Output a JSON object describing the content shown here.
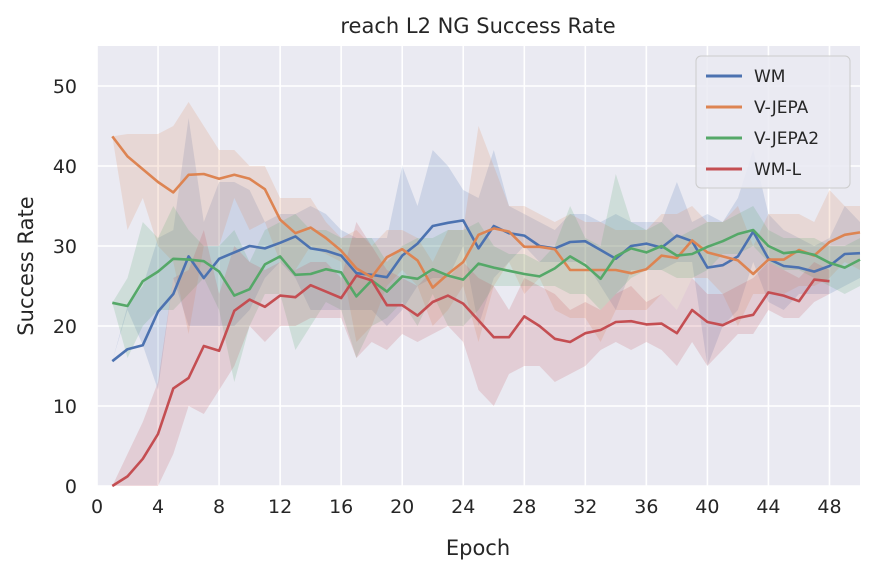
{
  "chart_data": {
    "type": "line",
    "title": "reach L2 NG Success Rate",
    "xlabel": "Epoch",
    "ylabel": "Success Rate",
    "xlim": [
      0,
      50
    ],
    "ylim": [
      0,
      55
    ],
    "xticks": [
      0,
      4,
      8,
      12,
      16,
      20,
      24,
      28,
      32,
      36,
      40,
      44,
      48
    ],
    "yticks": [
      0,
      10,
      20,
      30,
      40,
      50
    ],
    "grid": true,
    "legend_position": "top-right",
    "colors": {
      "background": "#eaeaf2",
      "grid": "#ffffff"
    },
    "series": [
      {
        "name": "WM",
        "color": "#4c72b0",
        "x": [
          1,
          2,
          3,
          4,
          5,
          6,
          7,
          8,
          9,
          10,
          11,
          12,
          13,
          14,
          15,
          16,
          17,
          18,
          19,
          20,
          21,
          22,
          23,
          24,
          25,
          26,
          27,
          28,
          29,
          30,
          31,
          32,
          33,
          34,
          35,
          36,
          37,
          38,
          39,
          40,
          41,
          42,
          43,
          44,
          45,
          46,
          47,
          48,
          49,
          50
        ],
        "values": [
          15.6,
          17.1,
          17.6,
          21.8,
          24.0,
          28.7,
          26.0,
          28.4,
          29.2,
          30.0,
          29.7,
          30.4,
          31.2,
          29.7,
          29.4,
          28.8,
          26.6,
          26.4,
          26.1,
          28.8,
          30.3,
          32.5,
          32.9,
          33.2,
          29.7,
          32.5,
          31.6,
          31.3,
          30.0,
          29.7,
          30.5,
          30.6,
          29.5,
          28.4,
          30.0,
          30.3,
          29.8,
          31.3,
          30.6,
          27.3,
          27.6,
          28.7,
          31.8,
          28.4,
          27.5,
          27.3,
          26.8,
          27.5,
          29.0,
          29.1
        ],
        "lower": [
          15.6,
          22.0,
          17.6,
          12.0,
          26.0,
          20.0,
          20.0,
          20.0,
          20.0,
          22.0,
          26.0,
          28.0,
          26.0,
          22.0,
          22.0,
          22.0,
          22.0,
          22.0,
          20.0,
          22.0,
          25.0,
          26.0,
          26.0,
          30.0,
          20.0,
          26.0,
          28.0,
          30.0,
          28.0,
          28.0,
          28.0,
          28.0,
          25.0,
          22.0,
          27.0,
          27.0,
          27.0,
          28.0,
          28.0,
          15.0,
          20.0,
          22.0,
          28.0,
          23.0,
          22.0,
          24.0,
          24.0,
          24.0,
          25.0,
          26.0
        ],
        "upper": [
          15.6,
          22.5,
          25.0,
          31.0,
          32.0,
          46.0,
          33.0,
          38.0,
          38.0,
          37.0,
          33.0,
          34.0,
          34.0,
          35.0,
          34.0,
          32.0,
          31.0,
          31.0,
          31.0,
          40.0,
          35.0,
          42.0,
          40.0,
          37.0,
          36.0,
          42.0,
          35.0,
          34.0,
          33.0,
          32.0,
          34.0,
          34.0,
          33.0,
          34.0,
          33.0,
          33.0,
          33.0,
          38.0,
          33.0,
          34.0,
          33.0,
          36.0,
          42.0,
          34.0,
          32.0,
          31.0,
          30.0,
          31.0,
          35.0,
          33.0
        ]
      },
      {
        "name": "V-JEPA",
        "color": "#dd8452",
        "x": [
          1,
          2,
          3,
          4,
          5,
          6,
          7,
          8,
          9,
          10,
          11,
          12,
          13,
          14,
          15,
          16,
          17,
          18,
          19,
          20,
          21,
          22,
          23,
          24,
          25,
          26,
          27,
          28,
          29,
          30,
          31,
          32,
          33,
          34,
          35,
          36,
          37,
          38,
          39,
          40,
          41,
          42,
          43,
          44,
          45,
          46,
          47,
          48,
          49,
          50
        ],
        "values": [
          43.7,
          41.2,
          39.6,
          38.0,
          36.7,
          38.9,
          39.0,
          38.4,
          38.9,
          38.4,
          37.1,
          33.3,
          31.6,
          32.3,
          31.0,
          29.4,
          27.2,
          26.1,
          28.6,
          29.6,
          28.2,
          24.8,
          26.5,
          28.0,
          31.4,
          32.2,
          31.8,
          29.9,
          29.9,
          29.6,
          27.0,
          27.0,
          27.0,
          27.0,
          26.6,
          27.1,
          28.8,
          28.5,
          30.7,
          29.2,
          28.7,
          28.2,
          26.5,
          28.3,
          28.3,
          29.5,
          28.8,
          30.5,
          31.4,
          31.7
        ],
        "lower": [
          43.7,
          32.0,
          36.0,
          30.0,
          28.0,
          19.0,
          30.0,
          30.0,
          36.0,
          32.0,
          33.0,
          28.0,
          27.0,
          30.0,
          29.0,
          28.0,
          18.0,
          20.0,
          25.0,
          27.0,
          25.0,
          20.0,
          22.0,
          25.0,
          18.0,
          25.0,
          28.0,
          24.0,
          26.0,
          22.0,
          21.0,
          21.0,
          18.0,
          22.0,
          22.0,
          22.0,
          24.0,
          22.0,
          26.0,
          26.0,
          24.0,
          20.0,
          24.0,
          24.0,
          24.0,
          25.0,
          25.0,
          26.0,
          28.0,
          27.0
        ],
        "upper": [
          43.7,
          44.0,
          44.0,
          44.0,
          45.0,
          48.0,
          45.0,
          42.0,
          42.0,
          40.0,
          40.0,
          36.0,
          36.0,
          36.0,
          33.0,
          31.0,
          32.0,
          30.0,
          32.0,
          32.0,
          31.0,
          28.0,
          32.0,
          32.0,
          45.0,
          40.0,
          35.0,
          35.0,
          34.0,
          33.0,
          34.0,
          33.0,
          33.0,
          32.0,
          32.0,
          32.0,
          34.0,
          34.0,
          35.0,
          33.0,
          33.0,
          35.0,
          30.0,
          34.0,
          34.0,
          34.0,
          33.0,
          37.0,
          35.0,
          35.0
        ]
      },
      {
        "name": "V-JEPA2",
        "color": "#55a868",
        "x": [
          1,
          2,
          3,
          4,
          5,
          6,
          7,
          8,
          9,
          10,
          11,
          12,
          13,
          14,
          15,
          16,
          17,
          18,
          19,
          20,
          21,
          22,
          23,
          24,
          25,
          26,
          27,
          28,
          29,
          30,
          31,
          32,
          33,
          34,
          35,
          36,
          37,
          38,
          39,
          40,
          41,
          42,
          43,
          44,
          45,
          46,
          47,
          48,
          49,
          50
        ],
        "values": [
          22.9,
          22.5,
          25.6,
          26.8,
          28.4,
          28.3,
          28.1,
          26.8,
          23.8,
          24.6,
          27.7,
          28.7,
          26.4,
          26.5,
          27.1,
          26.7,
          23.7,
          25.7,
          24.3,
          26.2,
          25.9,
          27.1,
          26.3,
          25.8,
          27.8,
          27.3,
          26.9,
          26.5,
          26.2,
          27.2,
          28.7,
          27.6,
          25.9,
          28.7,
          29.7,
          29.2,
          30.0,
          28.8,
          29.0,
          29.9,
          30.6,
          31.5,
          32.0,
          30.0,
          29.1,
          29.3,
          28.9,
          27.9,
          27.3,
          28.3
        ],
        "lower": [
          22.9,
          16.0,
          20.0,
          22.0,
          22.0,
          24.0,
          26.0,
          22.0,
          13.0,
          20.0,
          24.0,
          24.0,
          17.0,
          20.0,
          23.0,
          22.0,
          16.0,
          20.0,
          21.0,
          23.0,
          20.0,
          24.0,
          20.0,
          20.0,
          22.0,
          25.0,
          25.0,
          25.0,
          25.0,
          25.0,
          24.0,
          24.0,
          22.0,
          24.0,
          26.0,
          27.0,
          27.0,
          26.0,
          26.0,
          27.0,
          29.0,
          29.0,
          30.0,
          28.0,
          27.0,
          27.0,
          26.0,
          25.0,
          24.0,
          25.0
        ],
        "upper": [
          22.9,
          26.0,
          33.0,
          31.0,
          35.0,
          32.0,
          30.0,
          30.0,
          32.0,
          28.0,
          32.0,
          33.0,
          34.0,
          32.0,
          32.0,
          31.0,
          31.0,
          31.0,
          28.0,
          30.0,
          31.0,
          31.0,
          32.0,
          32.0,
          33.0,
          30.0,
          29.0,
          29.0,
          28.0,
          30.0,
          35.0,
          31.0,
          30.0,
          39.0,
          33.0,
          32.0,
          33.0,
          31.0,
          32.0,
          33.0,
          33.0,
          34.0,
          35.0,
          32.0,
          31.0,
          31.0,
          31.0,
          30.0,
          30.0,
          31.0
        ]
      },
      {
        "name": "WM-L",
        "color": "#c44e52",
        "x": [
          1,
          2,
          3,
          4,
          5,
          6,
          7,
          8,
          9,
          10,
          11,
          12,
          13,
          14,
          15,
          16,
          17,
          18,
          19,
          20,
          21,
          22,
          23,
          24,
          25,
          26,
          27,
          28,
          29,
          30,
          31,
          32,
          33,
          34,
          35,
          36,
          37,
          38,
          39,
          40,
          41,
          42,
          43,
          44,
          45,
          46,
          47,
          48
        ],
        "values": [
          0.0,
          1.2,
          3.4,
          6.5,
          12.2,
          13.5,
          17.5,
          16.9,
          21.9,
          23.3,
          22.4,
          23.8,
          23.6,
          25.1,
          24.3,
          23.5,
          26.3,
          25.7,
          22.6,
          22.6,
          21.3,
          23.0,
          23.8,
          22.8,
          20.7,
          18.6,
          18.6,
          21.2,
          20.0,
          18.4,
          18.0,
          19.1,
          19.5,
          20.5,
          20.6,
          20.2,
          20.3,
          19.1,
          22.0,
          20.5,
          20.1,
          21.0,
          21.4,
          24.2,
          23.8,
          23.1,
          25.8,
          25.6
        ],
        "lower": [
          0.0,
          0.0,
          0.0,
          0.0,
          4.0,
          10.0,
          9.0,
          12.0,
          15.0,
          20.0,
          18.0,
          20.0,
          20.0,
          21.0,
          21.0,
          21.0,
          16.0,
          18.0,
          17.0,
          19.0,
          18.0,
          19.0,
          20.0,
          18.0,
          12.0,
          10.0,
          14.0,
          15.0,
          15.0,
          13.0,
          14.0,
          15.0,
          17.0,
          18.0,
          17.0,
          18.0,
          17.0,
          15.0,
          18.0,
          15.0,
          17.0,
          19.0,
          19.0,
          22.0,
          21.0,
          21.0,
          23.0,
          24.0
        ],
        "upper": [
          0.0,
          4.0,
          8.0,
          13.0,
          26.0,
          27.0,
          32.0,
          24.0,
          30.0,
          28.0,
          27.0,
          28.0,
          27.0,
          28.0,
          28.0,
          26.0,
          33.0,
          30.0,
          27.0,
          26.0,
          25.0,
          27.0,
          26.0,
          28.0,
          26.0,
          25.0,
          22.0,
          26.0,
          25.0,
          24.0,
          22.0,
          23.0,
          22.0,
          24.0,
          25.0,
          23.0,
          24.0,
          22.0,
          26.0,
          24.0,
          24.0,
          25.0,
          26.0,
          28.0,
          27.0,
          26.0,
          28.0,
          27.0
        ]
      }
    ]
  }
}
